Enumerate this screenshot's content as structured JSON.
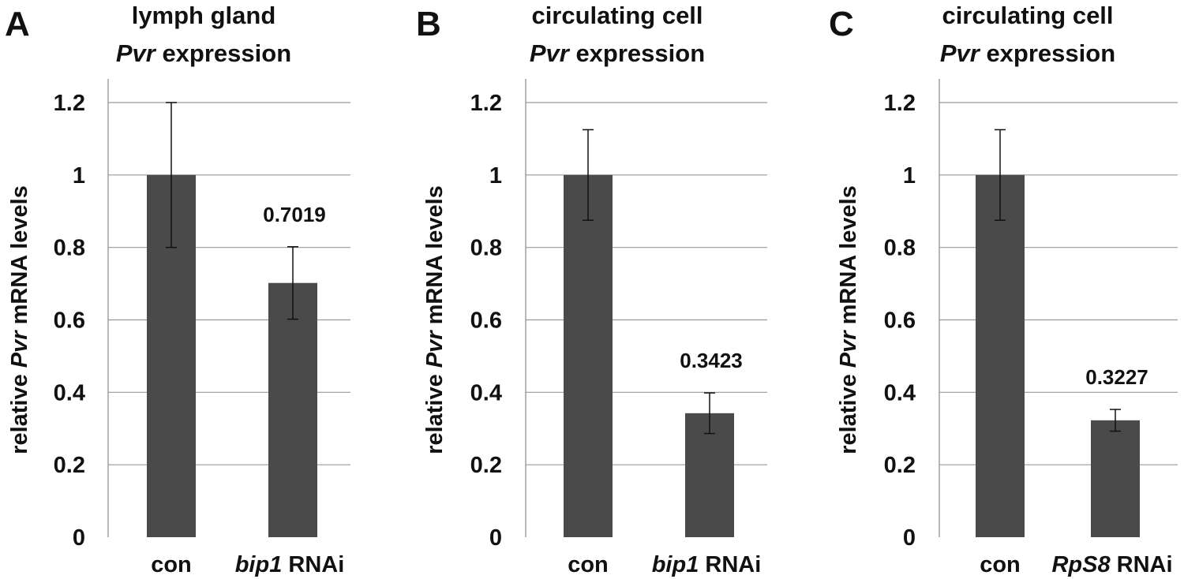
{
  "colors": {
    "bar": "#4a4a4a",
    "grid": "#9a9a9a",
    "text": "#111111"
  },
  "chart_data": [
    {
      "type": "bar",
      "panel": "A",
      "title_line1": "lymph gland",
      "title_gene": "Pvr",
      "title_rest": " expression",
      "ylabel_pre": "relative ",
      "ylabel_gene": "Pvr",
      "ylabel_post": " mRNA levels",
      "ylim": [
        0,
        1.2
      ],
      "yticks": [
        "0",
        "0.2",
        "0.4",
        "0.6",
        "0.8",
        "1",
        "1.2"
      ],
      "categories": [
        {
          "italic": "",
          "text": "con"
        },
        {
          "italic": "bip1",
          "text": " RNAi"
        }
      ],
      "values": [
        1.0,
        0.7019
      ],
      "errors": [
        0.2,
        0.1
      ],
      "value_labels": [
        "",
        "0.7019"
      ]
    },
    {
      "type": "bar",
      "panel": "B",
      "title_line1": "circulating cell",
      "title_gene": "Pvr",
      "title_rest": " expression",
      "ylabel_pre": "relative ",
      "ylabel_gene": "Pvr",
      "ylabel_post": " mRNA levels",
      "ylim": [
        0,
        1.2
      ],
      "yticks": [
        "0",
        "0.2",
        "0.4",
        "0.6",
        "0.8",
        "1",
        "1.2"
      ],
      "categories": [
        {
          "italic": "",
          "text": "con"
        },
        {
          "italic": "bip1",
          "text": " RNAi"
        }
      ],
      "values": [
        1.0,
        0.3423
      ],
      "errors": [
        0.125,
        0.056
      ],
      "value_labels": [
        "",
        "0.3423"
      ]
    },
    {
      "type": "bar",
      "panel": "C",
      "title_line1": "circulating cell",
      "title_gene": "Pvr",
      "title_rest": " expression",
      "ylabel_pre": "relative ",
      "ylabel_gene": "Pvr",
      "ylabel_post": " mRNA levels",
      "ylim": [
        0,
        1.2
      ],
      "yticks": [
        "0",
        "0.2",
        "0.4",
        "0.6",
        "0.8",
        "1",
        "1.2"
      ],
      "categories": [
        {
          "italic": "",
          "text": "con"
        },
        {
          "italic": "RpS8",
          "text": " RNAi"
        }
      ],
      "values": [
        1.0,
        0.3227
      ],
      "errors": [
        0.125,
        0.03
      ],
      "value_labels": [
        "",
        "0.3227"
      ]
    }
  ]
}
